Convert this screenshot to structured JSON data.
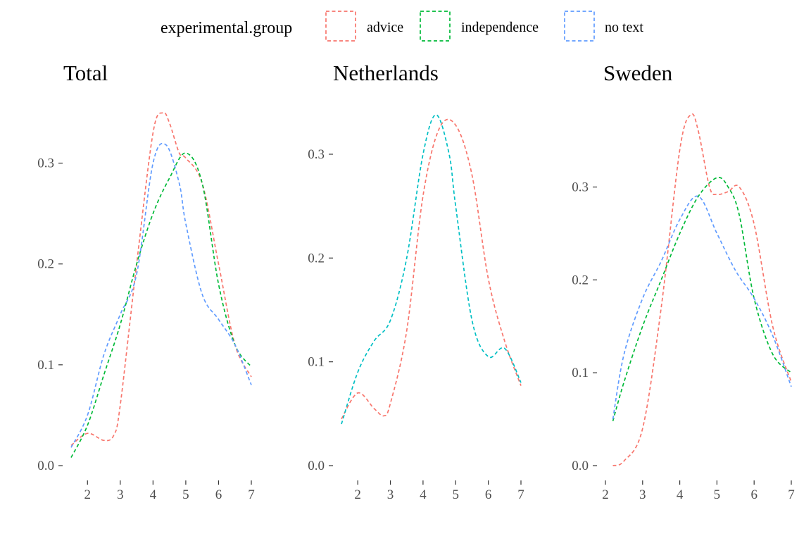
{
  "legend": {
    "title": "experimental.group",
    "items": [
      {
        "label": "advice",
        "color": "#F8766D"
      },
      {
        "label": "independence",
        "color": "#00BA38"
      },
      {
        "label": "no text",
        "color": "#619CFF"
      }
    ]
  },
  "chart_data": [
    {
      "type": "line",
      "title": "Total",
      "xlim": [
        1.5,
        7
      ],
      "ylim": [
        0,
        0.35
      ],
      "xticks": [
        2,
        3,
        4,
        5,
        6,
        7
      ],
      "xtick_labels": [
        "2",
        "3",
        "4",
        "5",
        "6",
        "7"
      ],
      "yticks": [
        0,
        0.1,
        0.2,
        0.3
      ],
      "ytick_labels": [
        "0.0",
        "0.1",
        "0.2",
        "0.3"
      ],
      "series": [
        {
          "name": "advice",
          "color": "#F8766D",
          "x": [
            1.5,
            2.0,
            2.5,
            2.8,
            3.0,
            3.5,
            4.0,
            4.3,
            4.5,
            4.8,
            5.0,
            5.5,
            6.0,
            6.5,
            7.0
          ],
          "y": [
            0.02,
            0.032,
            0.025,
            0.03,
            0.06,
            0.2,
            0.33,
            0.35,
            0.34,
            0.31,
            0.305,
            0.28,
            0.2,
            0.12,
            0.088
          ]
        },
        {
          "name": "independence",
          "color": "#00BA38",
          "x": [
            1.5,
            2.0,
            2.5,
            3.0,
            3.5,
            4.0,
            4.5,
            5.0,
            5.5,
            6.0,
            6.5,
            7.0
          ],
          "y": [
            0.008,
            0.04,
            0.09,
            0.14,
            0.2,
            0.25,
            0.285,
            0.31,
            0.28,
            0.18,
            0.12,
            0.098
          ]
        },
        {
          "name": "no text",
          "color": "#619CFF",
          "x": [
            1.5,
            2.0,
            2.5,
            3.0,
            3.5,
            4.0,
            4.4,
            4.8,
            5.0,
            5.5,
            6.0,
            6.5,
            7.0
          ],
          "y": [
            0.018,
            0.05,
            0.11,
            0.15,
            0.19,
            0.3,
            0.318,
            0.28,
            0.24,
            0.17,
            0.145,
            0.12,
            0.08
          ]
        }
      ]
    },
    {
      "type": "line",
      "title": "Netherlands",
      "xlim": [
        1.5,
        7
      ],
      "ylim": [
        0,
        0.34
      ],
      "xticks": [
        2,
        3,
        4,
        5,
        6,
        7
      ],
      "xtick_labels": [
        "2",
        "3",
        "4",
        "5",
        "6",
        "7"
      ],
      "yticks": [
        0,
        0.1,
        0.2,
        0.3
      ],
      "ytick_labels": [
        "0.0",
        "0.1",
        "0.2",
        "0.3"
      ],
      "series": [
        {
          "name": "advice",
          "color": "#F8766D",
          "x": [
            1.5,
            2.0,
            2.5,
            2.8,
            3.0,
            3.5,
            4.0,
            4.5,
            5.0,
            5.5,
            6.0,
            6.5,
            7.0
          ],
          "y": [
            0.045,
            0.07,
            0.055,
            0.048,
            0.06,
            0.13,
            0.26,
            0.325,
            0.328,
            0.28,
            0.18,
            0.12,
            0.077
          ]
        },
        {
          "name": "",
          "color": "#00BFC4",
          "x": [
            1.5,
            2.0,
            2.5,
            3.0,
            3.5,
            4.0,
            4.4,
            4.8,
            5.0,
            5.5,
            6.0,
            6.5,
            7.0
          ],
          "y": [
            0.04,
            0.09,
            0.12,
            0.14,
            0.2,
            0.3,
            0.338,
            0.3,
            0.25,
            0.14,
            0.105,
            0.113,
            0.08
          ]
        }
      ]
    },
    {
      "type": "line",
      "title": "Sweden",
      "xlim": [
        2,
        7
      ],
      "ylim": [
        0,
        0.38
      ],
      "xticks": [
        2,
        3,
        4,
        5,
        6,
        7
      ],
      "xtick_labels": [
        "2",
        "3",
        "4",
        "5",
        "6",
        "7"
      ],
      "yticks": [
        0,
        0.1,
        0.2,
        0.3
      ],
      "ytick_labels": [
        "0.0",
        "0.1",
        "0.2",
        "0.3"
      ],
      "series": [
        {
          "name": "advice",
          "color": "#F8766D",
          "x": [
            2.2,
            2.5,
            3.0,
            3.5,
            4.0,
            4.3,
            4.5,
            4.8,
            5.0,
            5.3,
            5.6,
            6.0,
            6.5,
            7.0
          ],
          "y": [
            0.0,
            0.005,
            0.04,
            0.17,
            0.34,
            0.378,
            0.36,
            0.3,
            0.292,
            0.295,
            0.3,
            0.26,
            0.15,
            0.09
          ]
        },
        {
          "name": "independence",
          "color": "#00BA38",
          "x": [
            2.2,
            2.5,
            3.0,
            3.5,
            4.0,
            4.5,
            5.0,
            5.3,
            5.6,
            6.0,
            6.5,
            7.0
          ],
          "y": [
            0.048,
            0.09,
            0.15,
            0.2,
            0.25,
            0.29,
            0.31,
            0.3,
            0.27,
            0.18,
            0.12,
            0.1
          ]
        },
        {
          "name": "no text",
          "color": "#619CFF",
          "x": [
            2.2,
            2.5,
            3.0,
            3.5,
            4.0,
            4.5,
            5.0,
            5.5,
            6.0,
            6.5,
            7.0
          ],
          "y": [
            0.05,
            0.12,
            0.18,
            0.22,
            0.265,
            0.29,
            0.25,
            0.21,
            0.18,
            0.14,
            0.085
          ]
        }
      ]
    }
  ]
}
